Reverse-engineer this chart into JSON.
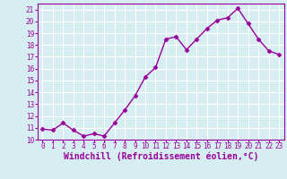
{
  "x": [
    0,
    1,
    2,
    3,
    4,
    5,
    6,
    7,
    8,
    9,
    10,
    11,
    12,
    13,
    14,
    15,
    16,
    17,
    18,
    19,
    20,
    21,
    22,
    23
  ],
  "y": [
    10.9,
    10.8,
    11.4,
    10.8,
    10.3,
    10.5,
    10.3,
    11.4,
    12.5,
    13.7,
    15.3,
    16.1,
    18.5,
    18.7,
    17.6,
    18.5,
    19.4,
    20.1,
    20.3,
    21.1,
    19.8,
    18.5,
    17.5,
    17.2
  ],
  "line_color": "#990099",
  "marker": "D",
  "marker_size": 2.5,
  "line_width": 1.0,
  "bg_color": "#d6eef2",
  "grid_color": "#ffffff",
  "xlabel": "Windchill (Refroidissement éolien,°C)",
  "xlabel_color": "#990099",
  "tick_color": "#990099",
  "spine_color": "#990099",
  "ylim": [
    10.0,
    21.5
  ],
  "xlim": [
    -0.5,
    23.5
  ],
  "yticks": [
    10,
    11,
    12,
    13,
    14,
    15,
    16,
    17,
    18,
    19,
    20,
    21
  ],
  "xticks": [
    0,
    1,
    2,
    3,
    4,
    5,
    6,
    7,
    8,
    9,
    10,
    11,
    12,
    13,
    14,
    15,
    16,
    17,
    18,
    19,
    20,
    21,
    22,
    23
  ],
  "tick_fontsize": 5.5,
  "xlabel_fontsize": 7.0
}
